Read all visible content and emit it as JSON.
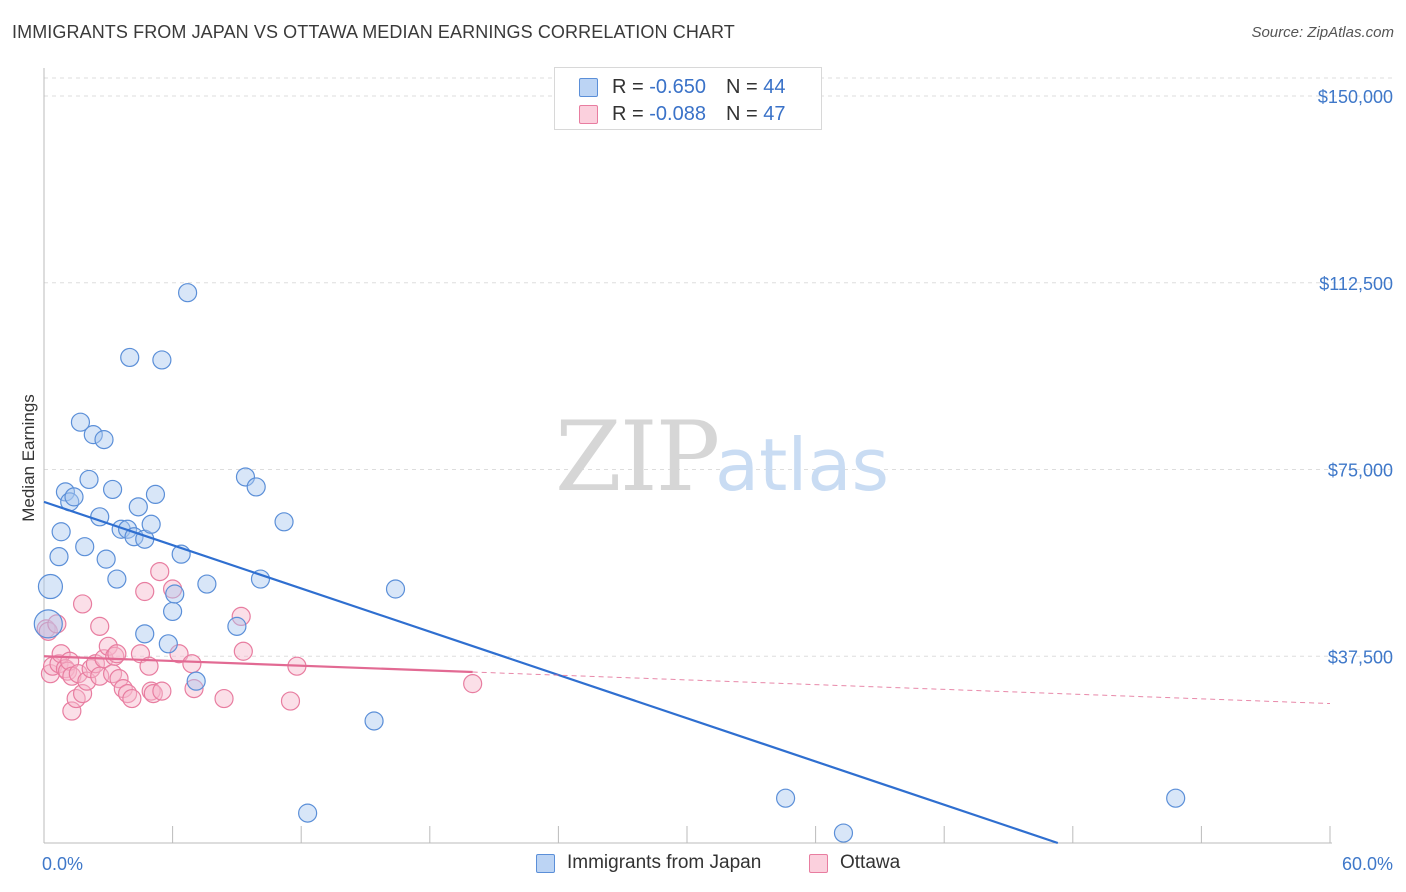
{
  "title": "IMMIGRANTS FROM JAPAN VS OTTAWA MEDIAN EARNINGS CORRELATION CHART",
  "source": "Source: ZipAtlas.com",
  "watermark": {
    "zip": "ZIP",
    "atlas": "atlas"
  },
  "legend_top": [
    {
      "r_label": "R = ",
      "r_value": "-0.650",
      "n_label": "N = ",
      "n_value": "44"
    },
    {
      "r_label": "R = ",
      "r_value": "-0.088",
      "n_label": "N = ",
      "n_value": "47"
    }
  ],
  "legend_bottom": [
    "Immigrants from Japan",
    "Ottawa"
  ],
  "colors": {
    "blue_fill": "#a9c8f0",
    "blue_stroke": "#5b8fd8",
    "blue_line": "#2f6fd0",
    "pink_fill": "#f7b9cc",
    "pink_stroke": "#e87da0",
    "pink_line": "#e26a93",
    "grid": "#dddddd",
    "axis_label": "#3f78c9"
  },
  "chart_data": {
    "type": "scatter",
    "title": "IMMIGRANTS FROM JAPAN VS OTTAWA MEDIAN EARNINGS CORRELATION CHART",
    "xlabel": "",
    "ylabel": "Median Earnings",
    "xlim": [
      0,
      60
    ],
    "ylim": [
      0,
      155000
    ],
    "x_tick_labels": [
      "0.0%",
      "60.0%"
    ],
    "y_ticks": [
      37500,
      75000,
      112500,
      150000
    ],
    "y_tick_labels": [
      "$37,500",
      "$75,000",
      "$112,500",
      "$150,000"
    ],
    "grid": true,
    "legend_position": "top-center",
    "series": [
      {
        "name": "Immigrants from Japan",
        "r": -0.65,
        "n": 44,
        "trend": {
          "x0": 0.0,
          "y0": 68500,
          "x1": 47.3,
          "y1": 0,
          "solid_to": 47.3
        },
        "points": [
          [
            0.3,
            51500,
            12
          ],
          [
            0.2,
            44000,
            14
          ],
          [
            0.7,
            57500,
            9
          ],
          [
            0.8,
            62500,
            9
          ],
          [
            1.0,
            70500,
            9
          ],
          [
            1.2,
            68500,
            9
          ],
          [
            1.4,
            69500,
            9
          ],
          [
            1.9,
            59500,
            9
          ],
          [
            1.7,
            84500,
            9
          ],
          [
            2.1,
            73000,
            9
          ],
          [
            2.3,
            82000,
            9
          ],
          [
            2.6,
            65500,
            9
          ],
          [
            2.8,
            81000,
            9
          ],
          [
            2.9,
            57000,
            9
          ],
          [
            3.2,
            71000,
            9
          ],
          [
            3.4,
            53000,
            9
          ],
          [
            3.6,
            63000,
            9
          ],
          [
            3.9,
            63000,
            9
          ],
          [
            4.0,
            97500,
            9
          ],
          [
            4.2,
            61500,
            9
          ],
          [
            4.4,
            67500,
            9
          ],
          [
            4.7,
            61000,
            9
          ],
          [
            4.7,
            42000,
            9
          ],
          [
            5.0,
            64000,
            9
          ],
          [
            5.2,
            70000,
            9
          ],
          [
            5.5,
            97000,
            9
          ],
          [
            5.8,
            40000,
            9
          ],
          [
            6.0,
            46500,
            9
          ],
          [
            6.1,
            50000,
            9
          ],
          [
            6.4,
            58000,
            9
          ],
          [
            6.7,
            110500,
            9
          ],
          [
            7.1,
            32500,
            9
          ],
          [
            7.6,
            52000,
            9
          ],
          [
            9.0,
            43500,
            9
          ],
          [
            9.4,
            73500,
            9
          ],
          [
            9.9,
            71500,
            9
          ],
          [
            10.1,
            53000,
            9
          ],
          [
            11.2,
            64500,
            9
          ],
          [
            12.3,
            6000,
            9
          ],
          [
            15.4,
            24500,
            9
          ],
          [
            16.4,
            51000,
            9
          ],
          [
            34.6,
            9000,
            9
          ],
          [
            37.3,
            2000,
            9
          ],
          [
            52.8,
            9000,
            9
          ]
        ]
      },
      {
        "name": "Ottawa",
        "r": -0.088,
        "n": 47,
        "trend": {
          "x0": 0.0,
          "y0": 37500,
          "x1": 60.0,
          "y1": 28000,
          "solid_to": 20.0
        },
        "points": [
          [
            0.1,
            43000,
            9
          ],
          [
            0.2,
            42500,
            9
          ],
          [
            0.3,
            34000,
            9
          ],
          [
            0.4,
            35500,
            9
          ],
          [
            0.6,
            44000,
            9
          ],
          [
            0.7,
            36000,
            9
          ],
          [
            0.8,
            38000,
            9
          ],
          [
            1.0,
            35000,
            9
          ],
          [
            1.1,
            34500,
            9
          ],
          [
            1.2,
            36500,
            9
          ],
          [
            1.3,
            33500,
            9
          ],
          [
            1.3,
            26500,
            9
          ],
          [
            1.5,
            29000,
            9
          ],
          [
            1.6,
            34000,
            9
          ],
          [
            1.8,
            30000,
            9
          ],
          [
            1.8,
            48000,
            9
          ],
          [
            2.0,
            32500,
            9
          ],
          [
            2.2,
            35000,
            9
          ],
          [
            2.4,
            36000,
            9
          ],
          [
            2.6,
            33500,
            9
          ],
          [
            2.6,
            43500,
            9
          ],
          [
            2.8,
            37000,
            9
          ],
          [
            3.0,
            39500,
            9
          ],
          [
            3.2,
            34000,
            9
          ],
          [
            3.3,
            37500,
            9
          ],
          [
            3.4,
            38000,
            9
          ],
          [
            3.5,
            33000,
            9
          ],
          [
            3.7,
            31000,
            9
          ],
          [
            3.9,
            30000,
            9
          ],
          [
            4.1,
            29000,
            9
          ],
          [
            4.5,
            38000,
            9
          ],
          [
            4.7,
            50500,
            9
          ],
          [
            4.9,
            35500,
            9
          ],
          [
            5.0,
            30500,
            9
          ],
          [
            5.1,
            30000,
            9
          ],
          [
            5.4,
            54500,
            9
          ],
          [
            5.5,
            30500,
            9
          ],
          [
            6.0,
            51000,
            9
          ],
          [
            6.3,
            38000,
            9
          ],
          [
            6.9,
            36000,
            9
          ],
          [
            7.0,
            31000,
            9
          ],
          [
            8.4,
            29000,
            9
          ],
          [
            9.2,
            45500,
            9
          ],
          [
            9.3,
            38500,
            9
          ],
          [
            11.5,
            28500,
            9
          ],
          [
            11.8,
            35500,
            9
          ],
          [
            20.0,
            32000,
            9
          ]
        ]
      }
    ]
  }
}
